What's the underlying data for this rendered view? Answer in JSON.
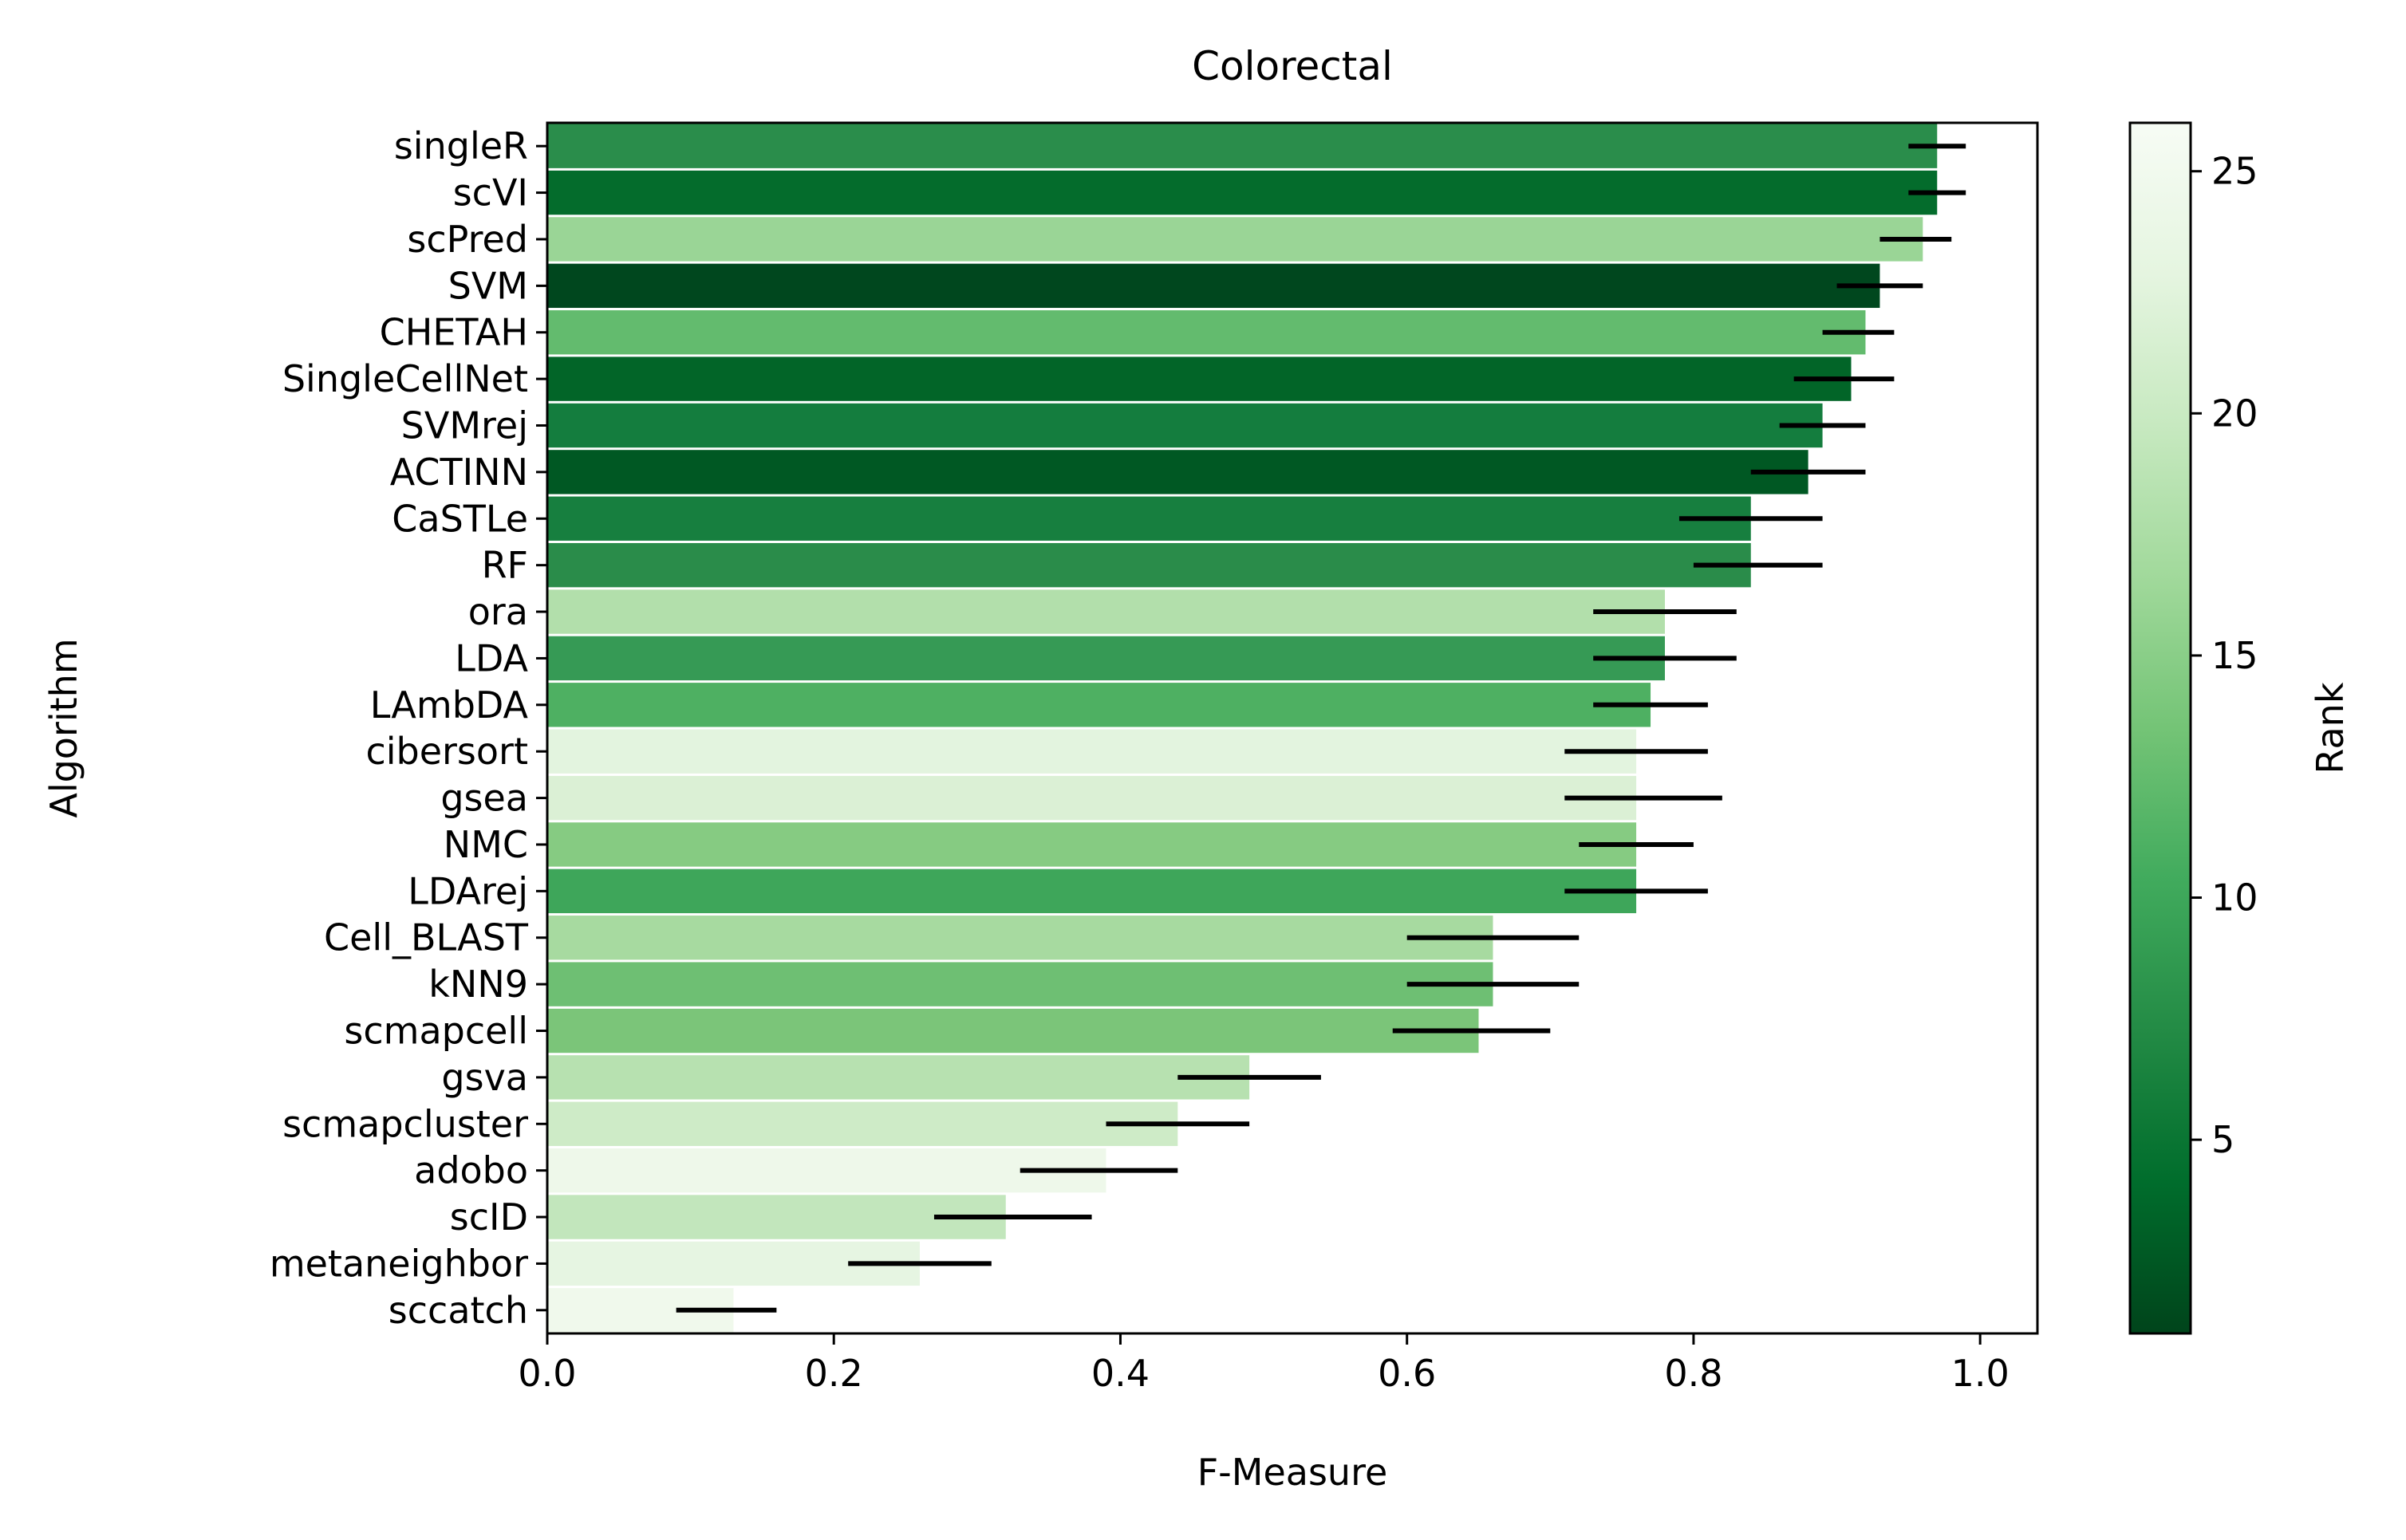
{
  "chart_data": {
    "type": "bar",
    "orientation": "horizontal",
    "title": "Colorectal",
    "xlabel": "F-Measure",
    "ylabel": "Algorithm",
    "xlim": [
      0,
      1.04
    ],
    "xticks": [
      0.0,
      0.2,
      0.4,
      0.6,
      0.8,
      1.0
    ],
    "xtick_labels": [
      "0.0",
      "0.2",
      "0.4",
      "0.6",
      "0.8",
      "1.0"
    ],
    "grid": false,
    "colorbar": {
      "label": "Rank",
      "colormap": "Greens",
      "range": [
        1,
        26
      ],
      "ticks": [
        5,
        10,
        15,
        20,
        25
      ],
      "tick_labels": [
        "5",
        "10",
        "15",
        "20",
        "25"
      ],
      "color_low": "#00441b",
      "color_high": "#f7fcf5"
    },
    "errorbar_color": "#000000",
    "bars": [
      {
        "label": "singleR",
        "value": 0.97,
        "err_low": 0.95,
        "err_high": 0.99,
        "rank": 7,
        "color": "#2a8d4b"
      },
      {
        "label": "scVI",
        "value": 0.97,
        "err_low": 0.95,
        "err_high": 0.99,
        "rank": 4,
        "color": "#046c2c"
      },
      {
        "label": "scPred",
        "value": 0.96,
        "err_low": 0.93,
        "err_high": 0.98,
        "rank": 17,
        "color": "#9ad596"
      },
      {
        "label": "SVM",
        "value": 0.93,
        "err_low": 0.9,
        "err_high": 0.96,
        "rank": 1,
        "color": "#00471e"
      },
      {
        "label": "CHETAH",
        "value": 0.92,
        "err_low": 0.89,
        "err_high": 0.94,
        "rank": 13,
        "color": "#63bb6e"
      },
      {
        "label": "SingleCellNet",
        "value": 0.91,
        "err_low": 0.87,
        "err_high": 0.94,
        "rank": 3,
        "color": "#026528"
      },
      {
        "label": "SVMrej",
        "value": 0.89,
        "err_low": 0.86,
        "err_high": 0.92,
        "rank": 6,
        "color": "#147d3e"
      },
      {
        "label": "ACTINN",
        "value": 0.88,
        "err_low": 0.84,
        "err_high": 0.92,
        "rank": 2,
        "color": "#005823"
      },
      {
        "label": "CaSTLe",
        "value": 0.84,
        "err_low": 0.79,
        "err_high": 0.89,
        "rank": 6,
        "color": "#177f3f"
      },
      {
        "label": "RF",
        "value": 0.84,
        "err_low": 0.8,
        "err_high": 0.89,
        "rank": 7,
        "color": "#2a8c4a"
      },
      {
        "label": "ora",
        "value": 0.78,
        "err_low": 0.73,
        "err_high": 0.83,
        "rank": 19,
        "color": "#b2dfab"
      },
      {
        "label": "LDA",
        "value": 0.78,
        "err_low": 0.73,
        "err_high": 0.83,
        "rank": 8,
        "color": "#369a55"
      },
      {
        "label": "LAmbDA",
        "value": 0.77,
        "err_low": 0.73,
        "err_high": 0.81,
        "rank": 11,
        "color": "#4eb062"
      },
      {
        "label": "cibersort",
        "value": 0.76,
        "err_low": 0.71,
        "err_high": 0.81,
        "rank": 23,
        "color": "#e3f4df"
      },
      {
        "label": "gsea",
        "value": 0.76,
        "err_low": 0.71,
        "err_high": 0.82,
        "rank": 22,
        "color": "#dbf0d5"
      },
      {
        "label": "NMC",
        "value": 0.76,
        "err_low": 0.72,
        "err_high": 0.8,
        "rank": 15,
        "color": "#86cb82"
      },
      {
        "label": "LDArej",
        "value": 0.76,
        "err_low": 0.71,
        "err_high": 0.81,
        "rank": 9,
        "color": "#3ea65a"
      },
      {
        "label": "Cell_BLAST",
        "value": 0.66,
        "err_low": 0.6,
        "err_high": 0.72,
        "rank": 18,
        "color": "#a7daa0"
      },
      {
        "label": "kNN9",
        "value": 0.66,
        "err_low": 0.6,
        "err_high": 0.72,
        "rank": 14,
        "color": "#6ebf73"
      },
      {
        "label": "scmapcell",
        "value": 0.65,
        "err_low": 0.59,
        "err_high": 0.7,
        "rank": 14,
        "color": "#7bc579"
      },
      {
        "label": "gsva",
        "value": 0.49,
        "err_low": 0.44,
        "err_high": 0.54,
        "rank": 19,
        "color": "#b7e1b0"
      },
      {
        "label": "scmapcluster",
        "value": 0.44,
        "err_low": 0.39,
        "err_high": 0.49,
        "rank": 21,
        "color": "#ceebc7"
      },
      {
        "label": "adobo",
        "value": 0.39,
        "err_low": 0.33,
        "err_high": 0.44,
        "rank": 25,
        "color": "#eef8ea"
      },
      {
        "label": "scID",
        "value": 0.32,
        "err_low": 0.27,
        "err_high": 0.38,
        "rank": 20,
        "color": "#c2e6bc"
      },
      {
        "label": "metaneighbor",
        "value": 0.26,
        "err_low": 0.21,
        "err_high": 0.31,
        "rank": 24,
        "color": "#e6f5e2"
      },
      {
        "label": "sccatch",
        "value": 0.13,
        "err_low": 0.09,
        "err_high": 0.16,
        "rank": 25,
        "color": "#f0f9ec"
      }
    ]
  }
}
